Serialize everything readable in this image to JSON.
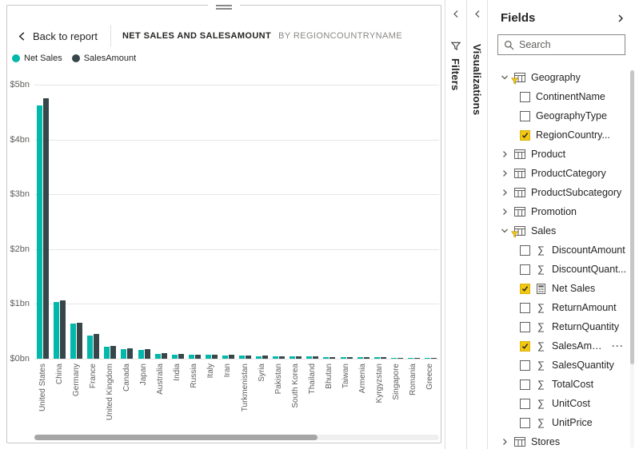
{
  "focus_bar": {
    "back_label": "Back to report",
    "title": "NET SALES AND SALESAMOUNT",
    "subtitle": "BY REGIONCOUNTRYNAME"
  },
  "visual_header": {
    "more_options": "···"
  },
  "icons": {
    "back": "chevron-left-icon",
    "drag_handle": "grip-lines-icon",
    "visual_filter": "funnel-icon",
    "more_options": "ellipsis-icon",
    "filters_pane": "funnel-icon",
    "expand_pane": "chevron-left-icon",
    "collapse_fields": "chevron-right-icon",
    "search": "magnifier-icon",
    "table": "table-grid-icon",
    "measure": "sigma-icon",
    "calculated_measure": "calculator-icon",
    "filtered_table_badge": "funnel-badge-icon"
  },
  "chart_data": {
    "type": "bar",
    "title": "NET SALES AND SALESAMOUNT BY REGIONCOUNTRYNAME",
    "categories": [
      "United States",
      "China",
      "Germany",
      "France",
      "United Kingdom",
      "Canada",
      "Japan",
      "Australia",
      "India",
      "Russia",
      "Italy",
      "Iran",
      "Turkmenistan",
      "Syria",
      "Pakistan",
      "South Korea",
      "Thailand",
      "Bhutan",
      "Taiwan",
      "Armenia",
      "Kyrgyzstan",
      "Singapore",
      "Romania",
      "Greece"
    ],
    "series": [
      {
        "name": "Net Sales",
        "color": "#01B8AA",
        "values": [
          4.62,
          1.04,
          0.64,
          0.42,
          0.22,
          0.18,
          0.16,
          0.09,
          0.08,
          0.075,
          0.07,
          0.065,
          0.055,
          0.05,
          0.045,
          0.04,
          0.04,
          0.035,
          0.03,
          0.03,
          0.025,
          0.02,
          0.015,
          0.01
        ]
      },
      {
        "name": "SalesAmount",
        "color": "#374649",
        "values": [
          4.75,
          1.06,
          0.66,
          0.45,
          0.23,
          0.19,
          0.17,
          0.1,
          0.085,
          0.08,
          0.075,
          0.07,
          0.06,
          0.055,
          0.05,
          0.045,
          0.04,
          0.035,
          0.035,
          0.03,
          0.025,
          0.02,
          0.015,
          0.01
        ]
      }
    ],
    "y_ticks": [
      {
        "label": "$0bn",
        "value": 0
      },
      {
        "label": "$1bn",
        "value": 1
      },
      {
        "label": "$2bn",
        "value": 2
      },
      {
        "label": "$3bn",
        "value": 3
      },
      {
        "label": "$4bn",
        "value": 4
      },
      {
        "label": "$5bn",
        "value": 5
      }
    ],
    "ylim": [
      0,
      5
    ],
    "gridlines": true,
    "legend_position": "top-left",
    "category_scrollbar": true
  },
  "panes": {
    "filters": {
      "label": "Filters"
    },
    "visualizations": {
      "label": "Visualizations"
    },
    "fields": {
      "title": "Fields",
      "search_placeholder": "Search",
      "more_options_glyph": "···",
      "items": [
        {
          "kind": "table",
          "label": "Geography",
          "expanded": true,
          "filtered": true
        },
        {
          "kind": "field",
          "label": "ContinentName",
          "checked": false,
          "icon": "none"
        },
        {
          "kind": "field",
          "label": "GeographyType",
          "checked": false,
          "icon": "none"
        },
        {
          "kind": "field",
          "label": "RegionCountry...",
          "checked": true,
          "icon": "none"
        },
        {
          "kind": "table",
          "label": "Product",
          "expanded": false,
          "filtered": false
        },
        {
          "kind": "table",
          "label": "ProductCategory",
          "expanded": false,
          "filtered": false
        },
        {
          "kind": "table",
          "label": "ProductSubcategory",
          "expanded": false,
          "filtered": false
        },
        {
          "kind": "table",
          "label": "Promotion",
          "expanded": false,
          "filtered": false
        },
        {
          "kind": "table",
          "label": "Sales",
          "expanded": true,
          "filtered": true
        },
        {
          "kind": "field",
          "label": "DiscountAmount",
          "checked": false,
          "icon": "sigma"
        },
        {
          "kind": "field",
          "label": "DiscountQuant...",
          "checked": false,
          "icon": "sigma"
        },
        {
          "kind": "field",
          "label": "Net Sales",
          "checked": true,
          "icon": "calculator"
        },
        {
          "kind": "field",
          "label": "ReturnAmount",
          "checked": false,
          "icon": "sigma"
        },
        {
          "kind": "field",
          "label": "ReturnQuantity",
          "checked": false,
          "icon": "sigma"
        },
        {
          "kind": "field",
          "label": "SalesAmount",
          "checked": true,
          "icon": "sigma",
          "more": true
        },
        {
          "kind": "field",
          "label": "SalesQuantity",
          "checked": false,
          "icon": "sigma"
        },
        {
          "kind": "field",
          "label": "TotalCost",
          "checked": false,
          "icon": "sigma"
        },
        {
          "kind": "field",
          "label": "UnitCost",
          "checked": false,
          "icon": "sigma"
        },
        {
          "kind": "field",
          "label": "UnitPrice",
          "checked": false,
          "icon": "sigma"
        },
        {
          "kind": "table",
          "label": "Stores",
          "expanded": false,
          "filtered": false
        }
      ]
    }
  }
}
